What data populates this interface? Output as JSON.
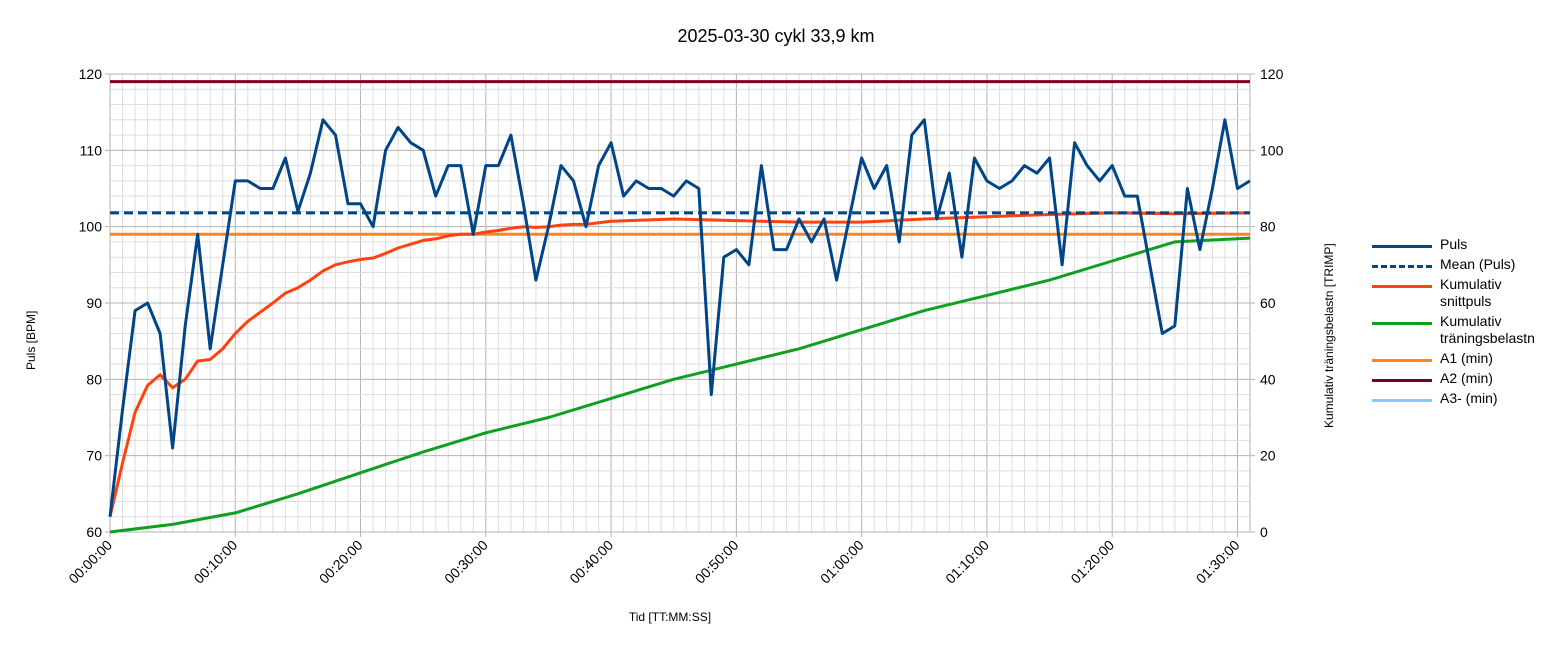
{
  "chart_data": {
    "type": "line",
    "title": "2025-03-30 cykl 33,9 km",
    "xlabel": "Tid [TT:MM:SS]",
    "ylabel_left": "Puls [BPM]",
    "ylabel_right": "Kumulativ träningsbelastn [TRIMP]",
    "x_tick_labels": [
      "00:00:00",
      "00:10:00",
      "00:20:00",
      "00:30:00",
      "00:40:00",
      "00:50:00",
      "01:00:00",
      "01:10:00",
      "01:20:00",
      "01:30:00"
    ],
    "x_unit": "minutes",
    "xlim": [
      0,
      91
    ],
    "ylim_left": [
      60,
      120
    ],
    "ylim_right": [
      0,
      120
    ],
    "y_ticks_left": [
      60,
      70,
      80,
      90,
      100,
      110,
      120
    ],
    "y_ticks_right": [
      0,
      20,
      40,
      60,
      80,
      100,
      120
    ],
    "grid": true,
    "legend_position": "right",
    "series": [
      {
        "name": "Puls",
        "axis": "left",
        "color": "#004586",
        "style": "solid",
        "x": [
          0,
          1,
          2,
          3,
          4,
          5,
          6,
          7,
          8,
          9,
          10,
          11,
          12,
          13,
          14,
          15,
          16,
          17,
          18,
          19,
          20,
          21,
          22,
          23,
          24,
          25,
          26,
          27,
          28,
          29,
          30,
          31,
          32,
          33,
          34,
          35,
          36,
          37,
          38,
          39,
          40,
          41,
          42,
          43,
          44,
          45,
          46,
          47,
          48,
          49,
          50,
          51,
          52,
          53,
          54,
          55,
          56,
          57,
          58,
          59,
          60,
          61,
          62,
          63,
          64,
          65,
          66,
          67,
          68,
          69,
          70,
          71,
          72,
          73,
          74,
          75,
          76,
          77,
          78,
          79,
          80,
          81,
          82,
          83,
          84,
          85,
          86,
          87,
          88,
          89,
          90,
          91
        ],
        "values": [
          62,
          76,
          89,
          90,
          86,
          71,
          87,
          99,
          84,
          95,
          106,
          106,
          105,
          105,
          109,
          102,
          107,
          114,
          112,
          103,
          103,
          100,
          110,
          113,
          111,
          110,
          104,
          108,
          108,
          99,
          108,
          108,
          112,
          103,
          93,
          100,
          108,
          106,
          100,
          108,
          111,
          104,
          106,
          105,
          105,
          104,
          106,
          105,
          78,
          96,
          97,
          95,
          108,
          97,
          97,
          101,
          98,
          101,
          93,
          101,
          109,
          105,
          108,
          98,
          112,
          114,
          101,
          107,
          96,
          109,
          106,
          105,
          106,
          108,
          107,
          109,
          95,
          111,
          108,
          106,
          108,
          104,
          104,
          95,
          86,
          87,
          105,
          97,
          105,
          114,
          105,
          106
        ]
      },
      {
        "name": "Mean (Puls)",
        "axis": "left",
        "color": "#004586",
        "style": "dashed",
        "x": [
          0,
          91
        ],
        "values": [
          101.8,
          101.8
        ]
      },
      {
        "name": "Kumulativ snittpuls",
        "axis": "left",
        "color": "#ff420e",
        "style": "solid",
        "x": [
          0,
          1,
          2,
          3,
          4,
          5,
          6,
          7,
          8,
          9,
          10,
          11,
          12,
          13,
          14,
          15,
          16,
          17,
          18,
          19,
          20,
          21,
          22,
          23,
          24,
          25,
          26,
          27,
          28,
          29,
          30,
          31,
          32,
          33,
          34,
          35,
          36,
          37,
          38,
          39,
          40,
          45,
          50,
          55,
          60,
          65,
          70,
          75,
          80,
          85,
          91
        ],
        "values": [
          62,
          69,
          75.7,
          79.2,
          80.6,
          78.9,
          80,
          82.4,
          82.6,
          84,
          86,
          87.6,
          88.8,
          90,
          91.3,
          92,
          93,
          94.2,
          95,
          95.4,
          95.7,
          95.9,
          96.5,
          97.2,
          97.7,
          98.2,
          98.4,
          98.8,
          99,
          99,
          99.3,
          99.5,
          99.8,
          100,
          99.9,
          100,
          100.2,
          100.3,
          100.3,
          100.5,
          100.7,
          101,
          100.8,
          100.6,
          100.6,
          101,
          101.3,
          101.6,
          101.8,
          101.7,
          101.8
        ]
      },
      {
        "name": "Kumulativ träningsbelastn",
        "axis": "right",
        "color": "#10a020",
        "style": "solid",
        "x": [
          0,
          5,
          10,
          15,
          20,
          25,
          30,
          35,
          40,
          45,
          50,
          55,
          60,
          65,
          70,
          75,
          80,
          85,
          91
        ],
        "values": [
          0,
          2,
          5,
          10,
          15.5,
          21,
          26,
          30,
          35,
          40,
          44,
          48,
          53,
          58,
          62,
          66,
          71,
          76,
          77
        ]
      },
      {
        "name": "A1 (min)",
        "axis": "left",
        "color": "#ff8420",
        "style": "solid",
        "x": [
          0,
          91
        ],
        "values": [
          99,
          99
        ]
      },
      {
        "name": "A2 (min)",
        "axis": "left",
        "color": "#7e0021",
        "style": "solid",
        "x": [
          0,
          91
        ],
        "values": [
          119,
          119
        ]
      },
      {
        "name": "A3- (min)",
        "axis": "left",
        "color": "#83caff",
        "style": "solid",
        "x": [],
        "values": []
      }
    ]
  },
  "legend": {
    "items": [
      {
        "label": "Puls",
        "color": "#004586",
        "style": "solid"
      },
      {
        "label": "Mean (Puls)",
        "color": "#004586",
        "style": "dashed"
      },
      {
        "label": "Kumulativ snittpuls",
        "color": "#ff420e",
        "style": "solid"
      },
      {
        "label": "Kumulativ träningsbelastn",
        "color": "#10a020",
        "style": "solid"
      },
      {
        "label": "A1 (min)",
        "color": "#ff8420",
        "style": "solid"
      },
      {
        "label": "A2 (min)",
        "color": "#7e0021",
        "style": "solid"
      },
      {
        "label": "A3- (min)",
        "color": "#83caff",
        "style": "solid"
      }
    ]
  }
}
